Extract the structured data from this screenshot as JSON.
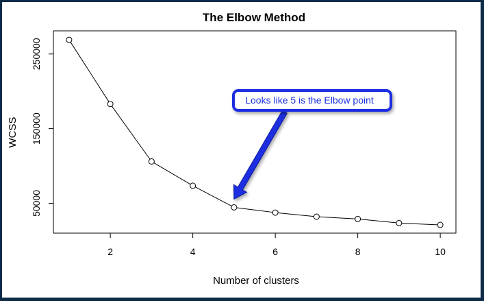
{
  "chart_data": {
    "type": "line",
    "title": "The Elbow Method",
    "xlabel": "Number of clusters",
    "ylabel": "WCSS",
    "x": [
      1,
      2,
      3,
      4,
      5,
      6,
      7,
      8,
      9,
      10
    ],
    "series": [
      {
        "values": [
          269000,
          183000,
          106000,
          73500,
          44500,
          37500,
          32000,
          29000,
          23500,
          21000
        ]
      }
    ],
    "xlim": [
      0.62,
      10.38
    ],
    "ylim": [
      10000,
      281000
    ],
    "xticks": [
      2,
      4,
      6,
      8,
      10
    ],
    "yticks": [
      50000,
      150000,
      250000
    ],
    "xtick_labels": [
      "2",
      "4",
      "6",
      "8",
      "10"
    ],
    "ytick_labels": [
      "50000",
      "150000",
      "250000"
    ],
    "grid": false,
    "annotation": {
      "text": "Looks like 5 is the Elbow point",
      "target_x": 5,
      "target_y": 44500,
      "color": "#1a2fe0"
    }
  }
}
